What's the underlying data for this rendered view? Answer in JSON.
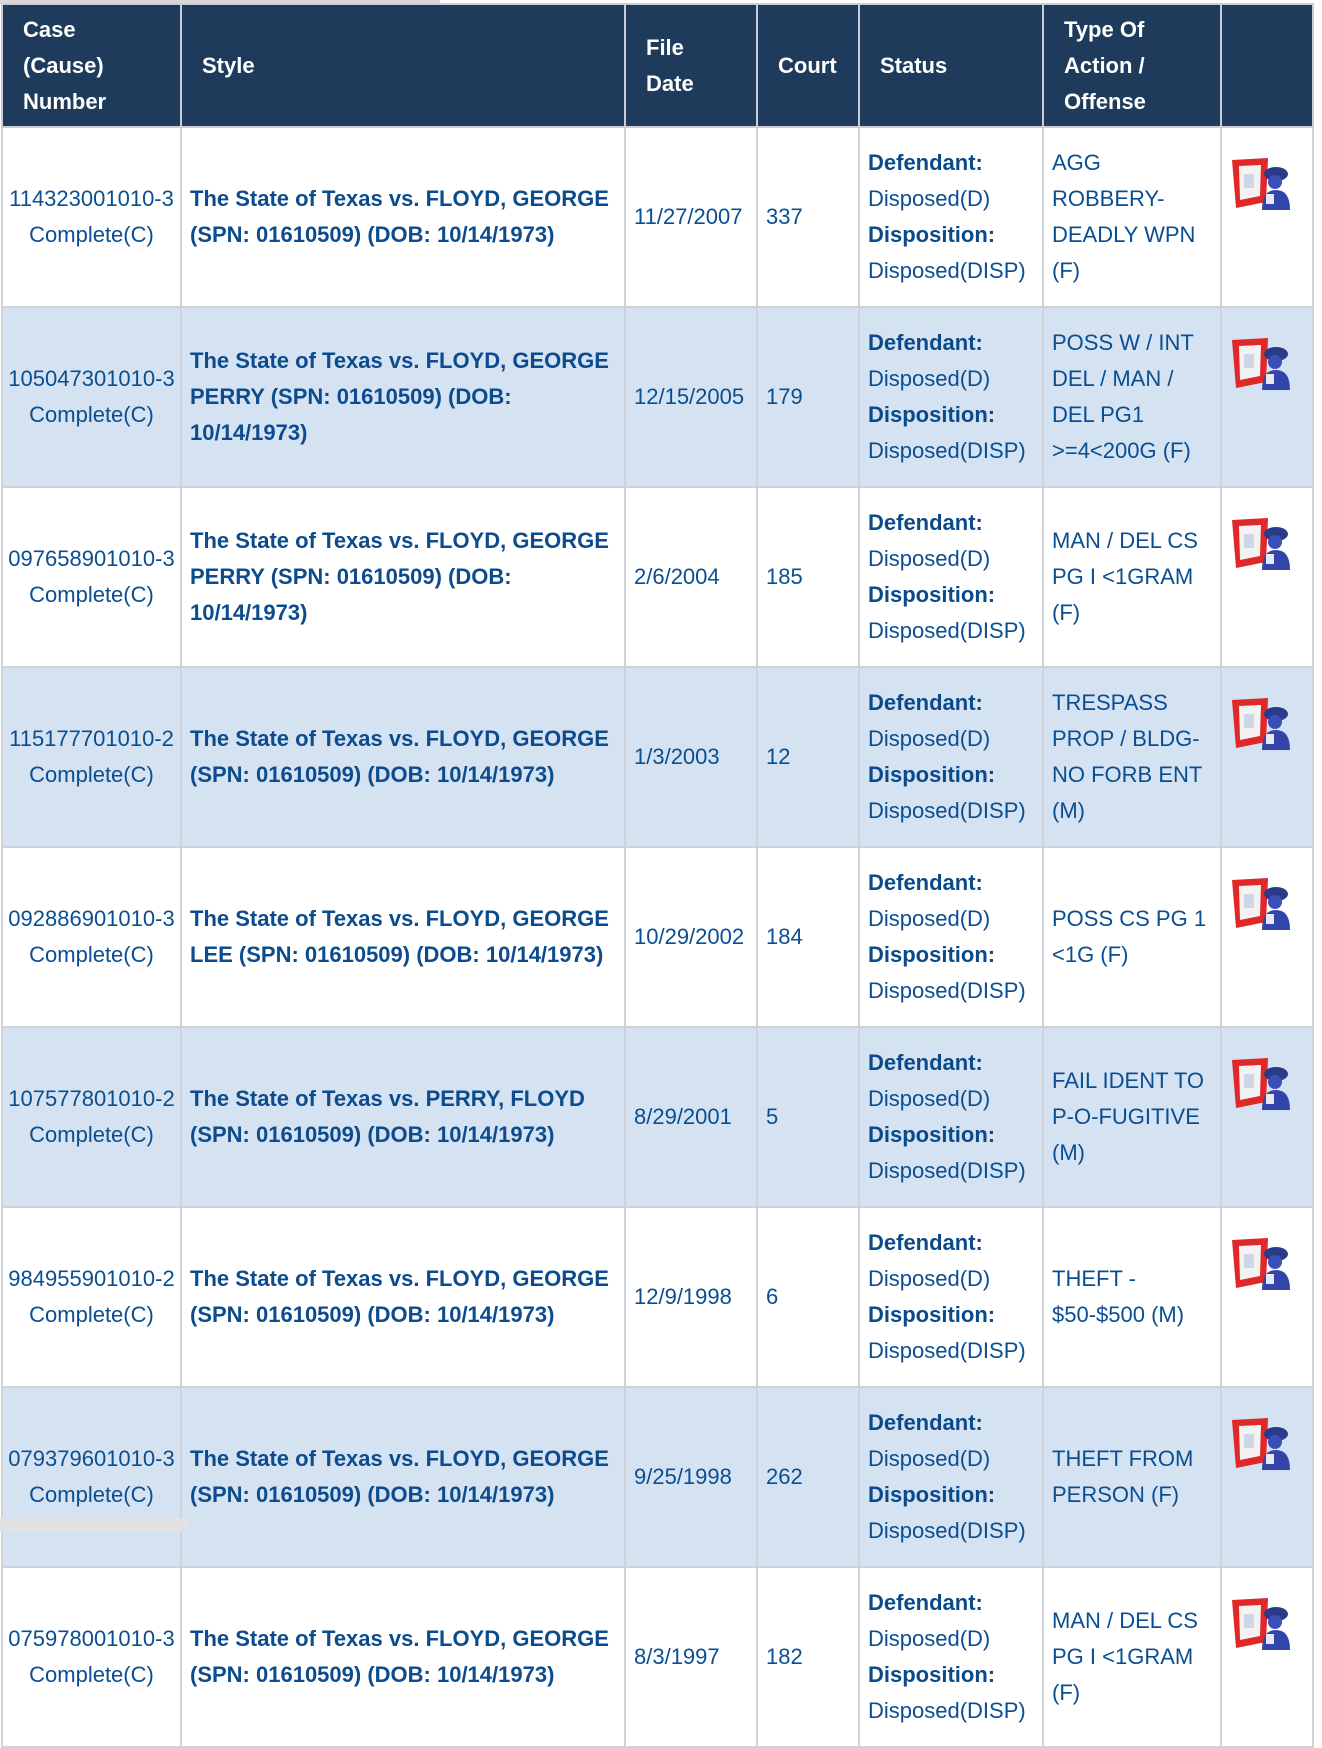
{
  "headers": {
    "case": "Case (Cause) Number",
    "style": "Style",
    "file_date": "File Date",
    "court": "Court",
    "status": "Status",
    "type": "Type Of Action / Offense",
    "icon": ""
  },
  "labels": {
    "defendant": "Defendant:",
    "disposition": "Disposition:"
  },
  "colors": {
    "header_bg": "#1e3b5c",
    "link_text": "#0a4e92",
    "alt_row": "#d5e2f1"
  },
  "rows": [
    {
      "case": "114323001010-3",
      "case_status": "Complete(C)",
      "style": "The State of Texas vs. FLOYD, GEORGE (SPN: 01610509) (DOB: 10/14/1973)",
      "file_date": "11/27/2007",
      "court": "337",
      "defendant": "Disposed(D)",
      "disposition": "Disposed(DISP)",
      "offense": "AGG ROBBERY-DEADLY WPN (F)",
      "icon": "police-officer-icon"
    },
    {
      "case": "105047301010-3",
      "case_status": "Complete(C)",
      "style": "The State of Texas vs. FLOYD, GEORGE PERRY (SPN: 01610509) (DOB: 10/14/1973)",
      "file_date": "12/15/2005",
      "court": "179",
      "defendant": "Disposed(D)",
      "disposition": "Disposed(DISP)",
      "offense": "POSS W / INT DEL / MAN / DEL PG1 >=4<200G (F)",
      "icon": "police-officer-icon"
    },
    {
      "case": "097658901010-3",
      "case_status": "Complete(C)",
      "style": "The State of Texas vs. FLOYD, GEORGE PERRY (SPN: 01610509) (DOB: 10/14/1973)",
      "file_date": "2/6/2004",
      "court": "185",
      "defendant": "Disposed(D)",
      "disposition": "Disposed(DISP)",
      "offense": "MAN / DEL CS PG I <1GRAM (F)",
      "icon": "police-officer-icon"
    },
    {
      "case": "115177701010-2",
      "case_status": "Complete(C)",
      "style": "The State of Texas vs. FLOYD, GEORGE (SPN: 01610509) (DOB: 10/14/1973)",
      "file_date": "1/3/2003",
      "court": "12",
      "defendant": "Disposed(D)",
      "disposition": "Disposed(DISP)",
      "offense": "TRESPASS PROP / BLDG-NO FORB ENT (M)",
      "icon": "police-officer-icon"
    },
    {
      "case": "092886901010-3",
      "case_status": "Complete(C)",
      "style": "The State of Texas vs. FLOYD, GEORGE LEE (SPN: 01610509) (DOB: 10/14/1973)",
      "file_date": "10/29/2002",
      "court": "184",
      "defendant": "Disposed(D)",
      "disposition": "Disposed(DISP)",
      "offense": "POSS CS PG 1 <1G (F)",
      "icon": "police-officer-icon"
    },
    {
      "case": "107577801010-2",
      "case_status": "Complete(C)",
      "style": "The State of Texas vs. PERRY, FLOYD (SPN: 01610509) (DOB: 10/14/1973)",
      "file_date": "8/29/2001",
      "court": "5",
      "defendant": "Disposed(D)",
      "disposition": "Disposed(DISP)",
      "offense": "FAIL IDENT TO P-O-FUGITIVE (M)",
      "icon": "police-officer-icon"
    },
    {
      "case": "984955901010-2",
      "case_status": "Complete(C)",
      "style": "The State of Texas vs. FLOYD, GEORGE (SPN: 01610509) (DOB: 10/14/1973)",
      "file_date": "12/9/1998",
      "court": "6",
      "defendant": "Disposed(D)",
      "disposition": "Disposed(DISP)",
      "offense": "THEFT - $50-$500 (M)",
      "icon": "police-officer-icon"
    },
    {
      "case": "079379601010-3",
      "case_status": "Complete(C)",
      "style": "The State of Texas vs. FLOYD, GEORGE (SPN: 01610509) (DOB: 10/14/1973)",
      "file_date": "9/25/1998",
      "court": "262",
      "defendant": "Disposed(D)",
      "disposition": "Disposed(DISP)",
      "offense": "THEFT FROM PERSON (F)",
      "icon": "police-officer-icon"
    },
    {
      "case": "075978001010-3",
      "case_status": "Complete(C)",
      "style": "The State of Texas vs. FLOYD, GEORGE (SPN: 01610509) (DOB: 10/14/1973)",
      "file_date": "8/3/1997",
      "court": "182",
      "defendant": "Disposed(D)",
      "disposition": "Disposed(DISP)",
      "offense": "MAN / DEL CS PG I <1GRAM (F)",
      "icon": "police-officer-icon"
    }
  ]
}
